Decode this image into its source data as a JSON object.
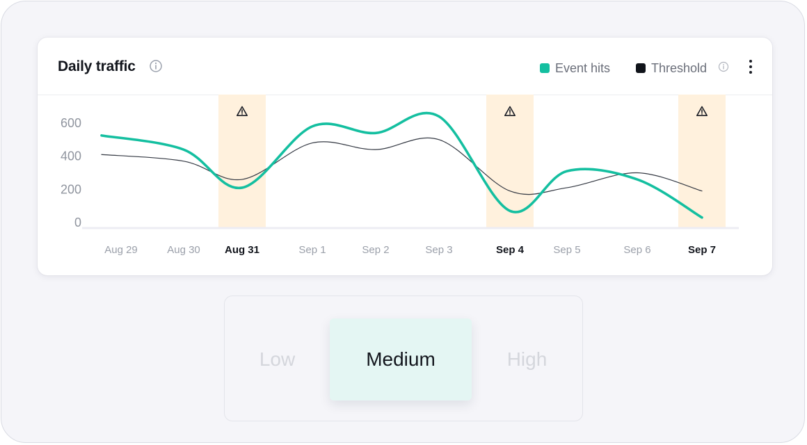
{
  "card": {
    "title": "Daily traffic",
    "title_info_icon": "info-icon",
    "menu_icon": "more-vertical-icon"
  },
  "legend": [
    {
      "label": "Event hits",
      "color": "#14bfa0"
    },
    {
      "label": "Threshold",
      "color": "#10131a",
      "info_icon": "info-icon"
    }
  ],
  "chart_data": {
    "type": "line",
    "x": [
      "Aug 29",
      "Aug 30",
      "Aug 31",
      "Sep 1",
      "Sep 2",
      "Sep 3",
      "Sep 4",
      "Sep 5",
      "Sep 6",
      "Sep 7"
    ],
    "highlighted_x": [
      "Aug 31",
      "Sep 4",
      "Sep 7"
    ],
    "highlight_icon": "warning-triangle-icon",
    "highlight_color": "#fff1dd",
    "yticks": [
      0,
      200,
      400,
      600
    ],
    "ylim": [
      0,
      600
    ],
    "grid": false,
    "legend_position": "top-right",
    "series": [
      {
        "name": "Event hits",
        "color": "#14bfa0",
        "values": [
          525,
          440,
          210,
          580,
          540,
          640,
          70,
          310,
          260,
          30
        ]
      },
      {
        "name": "Threshold",
        "color": "#333842",
        "values": [
          410,
          370,
          260,
          480,
          440,
          500,
          190,
          210,
          300,
          190
        ]
      }
    ]
  },
  "level_selector": {
    "options": [
      "Low",
      "Medium",
      "High"
    ],
    "selected": "Medium"
  }
}
